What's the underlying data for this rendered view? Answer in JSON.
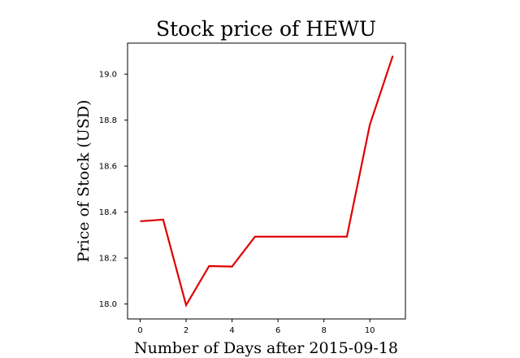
{
  "chart_data": {
    "type": "line",
    "title": "Stock price of HEWU",
    "xlabel": "Number of Days after 2015-09-18",
    "ylabel": "Price of Stock (USD)",
    "xlim": [
      -0.55,
      11.55
    ],
    "ylim": [
      17.935,
      19.135
    ],
    "x_ticks": [
      0,
      2,
      4,
      6,
      8,
      10
    ],
    "y_ticks": [
      18.0,
      18.2,
      18.4,
      18.6,
      18.8,
      19.0
    ],
    "x_tick_labels": [
      "0",
      "2",
      "4",
      "6",
      "8",
      "10"
    ],
    "y_tick_labels": [
      "18.0",
      "18.2",
      "18.4",
      "18.6",
      "18.8",
      "19.0"
    ],
    "grid": false,
    "series": [
      {
        "color": "#e00000",
        "x": [
          0,
          1,
          2,
          3,
          4,
          5,
          6,
          7,
          8,
          9,
          10,
          11
        ],
        "y": [
          18.36,
          18.367,
          17.995,
          18.165,
          18.163,
          18.293,
          18.293,
          18.293,
          18.293,
          18.293,
          18.78,
          19.08
        ]
      }
    ]
  }
}
